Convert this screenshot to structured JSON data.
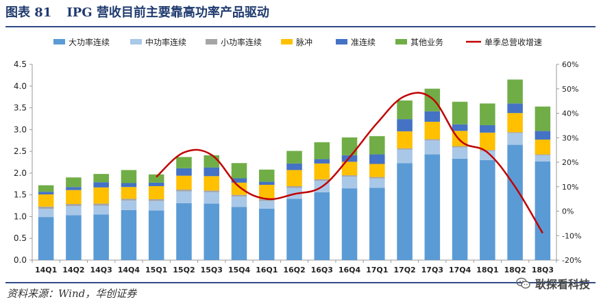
{
  "header": {
    "label": "图表 81",
    "title": "IPG 营收目前主要靠高功率产品驱动"
  },
  "footer": {
    "source": "资料来源：Wind，华创证券",
    "watermark": "耿探看科技"
  },
  "chart_data": {
    "type": "bar",
    "stacked": true,
    "categories": [
      "14Q1",
      "14Q2",
      "14Q3",
      "14Q4",
      "15Q1",
      "15Q2",
      "15Q3",
      "15Q4",
      "16Q1",
      "16Q2",
      "16Q3",
      "16Q4",
      "17Q1",
      "17Q2",
      "17Q3",
      "17Q4",
      "18Q1",
      "18Q2",
      "18Q3"
    ],
    "ylim": [
      0,
      4.5
    ],
    "yticks": [
      "0.0",
      "0.5",
      "1.0",
      "1.5",
      "2.0",
      "2.5",
      "3.0",
      "3.5",
      "4.0",
      "4.5"
    ],
    "y2lim": [
      -20,
      60
    ],
    "y2ticks": [
      "-20%",
      "-10%",
      "0%",
      "10%",
      "20%",
      "30%",
      "40%",
      "50%",
      "60%"
    ],
    "series": [
      {
        "name": "大功率连续",
        "color": "#5b9bd5",
        "values": [
          0.99,
          1.03,
          1.05,
          1.15,
          1.14,
          1.31,
          1.3,
          1.22,
          1.18,
          1.41,
          1.56,
          1.65,
          1.66,
          2.23,
          2.43,
          2.33,
          2.3,
          2.65,
          2.27
        ]
      },
      {
        "name": "中功率连续",
        "color": "#a9c8e8",
        "values": [
          0.19,
          0.21,
          0.2,
          0.22,
          0.22,
          0.27,
          0.26,
          0.24,
          0.18,
          0.25,
          0.26,
          0.27,
          0.22,
          0.31,
          0.32,
          0.26,
          0.21,
          0.27,
          0.14
        ]
      },
      {
        "name": "小功率连续",
        "color": "#a5a5a5",
        "values": [
          0.05,
          0.05,
          0.05,
          0.04,
          0.04,
          0.04,
          0.04,
          0.04,
          0.04,
          0.04,
          0.04,
          0.03,
          0.03,
          0.03,
          0.03,
          0.03,
          0.02,
          0.02,
          0.02
        ]
      },
      {
        "name": "脉冲",
        "color": "#ffc000",
        "values": [
          0.28,
          0.32,
          0.37,
          0.27,
          0.3,
          0.32,
          0.33,
          0.28,
          0.33,
          0.37,
          0.36,
          0.31,
          0.3,
          0.39,
          0.4,
          0.35,
          0.4,
          0.44,
          0.34
        ]
      },
      {
        "name": "准连续",
        "color": "#4472c4",
        "values": [
          0.06,
          0.07,
          0.12,
          0.09,
          0.08,
          0.17,
          0.2,
          0.1,
          0.07,
          0.15,
          0.1,
          0.15,
          0.22,
          0.28,
          0.24,
          0.15,
          0.17,
          0.22,
          0.2
        ]
      },
      {
        "name": "其他业务",
        "color": "#70ad47",
        "values": [
          0.15,
          0.22,
          0.19,
          0.3,
          0.19,
          0.26,
          0.28,
          0.35,
          0.28,
          0.29,
          0.39,
          0.41,
          0.42,
          0.43,
          0.52,
          0.52,
          0.5,
          0.55,
          0.56
        ]
      }
    ],
    "line": {
      "name": "单季总营收增速",
      "color": "#c00000",
      "axis": "right",
      "values": [
        null,
        null,
        null,
        null,
        14,
        24,
        23,
        10,
        5,
        7,
        10,
        22,
        36,
        47,
        46,
        29,
        24,
        10,
        -9
      ]
    },
    "legend_position": "top"
  }
}
